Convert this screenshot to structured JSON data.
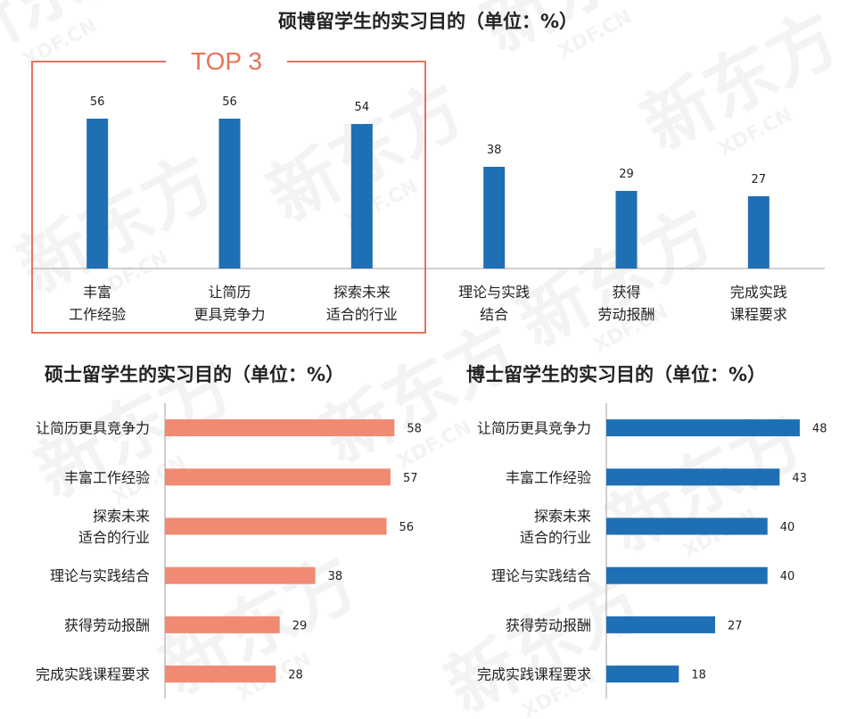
{
  "highlight": {
    "label": "TOP 3"
  },
  "watermark": {
    "text": "新东方",
    "sub": "XDF.CN"
  },
  "colors": {
    "blue": "#1f6fb5",
    "salmon": "#f08a72",
    "highlight": "#e8735a",
    "axis": "#bfbfbf"
  },
  "chart_data": [
    {
      "type": "bar",
      "orientation": "vertical",
      "title": "硕博留学生的实习目的（单位：%）",
      "categories": [
        [
          "丰富",
          "工作经验"
        ],
        [
          "让简历",
          "更具竞争力"
        ],
        [
          "探索未来",
          "适合的行业"
        ],
        [
          "理论与实践",
          "结合"
        ],
        [
          "获得",
          "劳动报酬"
        ],
        [
          "完成实践",
          "课程要求"
        ]
      ],
      "values": [
        56,
        56,
        54,
        38,
        29,
        27
      ],
      "ylim": [
        0,
        64
      ],
      "grid": false,
      "color": "#1f6fb5"
    },
    {
      "type": "bar",
      "orientation": "horizontal",
      "title": "硕士留学生的实习目的（单位：%）",
      "categories": [
        [
          "让简历更具竞争力"
        ],
        [
          "丰富工作经验"
        ],
        [
          "探索未来",
          "适合的行业"
        ],
        [
          "理论与实践结合"
        ],
        [
          "获得劳动报酬"
        ],
        [
          "完成实践课程要求"
        ]
      ],
      "values": [
        58,
        57,
        56,
        38,
        29,
        28
      ],
      "xlim": [
        0,
        64
      ],
      "grid": false,
      "color": "#f08a72"
    },
    {
      "type": "bar",
      "orientation": "horizontal",
      "title": "博士留学生的实习目的（单位：%）",
      "categories": [
        [
          "让简历更具竞争力"
        ],
        [
          "丰富工作经验"
        ],
        [
          "探索未来",
          "适合的行业"
        ],
        [
          "理论与实践结合"
        ],
        [
          "获得劳动报酬"
        ],
        [
          "完成实践课程要求"
        ]
      ],
      "values": [
        48,
        43,
        40,
        40,
        27,
        18
      ],
      "xlim": [
        0,
        52
      ],
      "grid": false,
      "color": "#1f6fb5"
    }
  ]
}
